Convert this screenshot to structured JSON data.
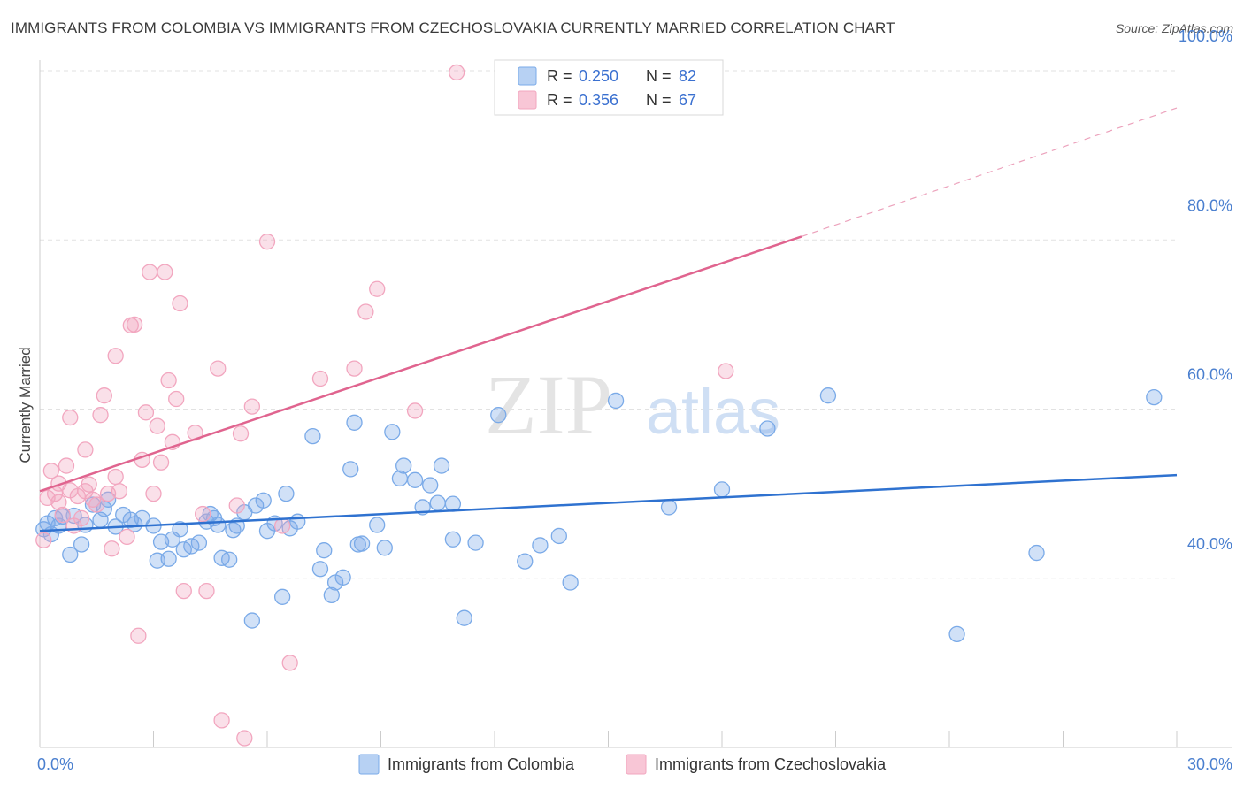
{
  "title": "IMMIGRANTS FROM COLOMBIA VS IMMIGRANTS FROM CZECHOSLOVAKIA CURRENTLY MARRIED CORRELATION CHART",
  "source": "Source: ZipAtlas.com",
  "watermark": {
    "zip": "ZIP",
    "atlas": "atlas"
  },
  "chart_data": {
    "type": "scatter",
    "xlabel": "",
    "ylabel": "Currently Married",
    "xlim": [
      0,
      30
    ],
    "ylim": [
      20,
      100
    ],
    "x_tick_labels": [
      "0.0%",
      "30.0%"
    ],
    "x_tick_values": [
      0,
      30
    ],
    "y_ticks": [
      {
        "value": 40,
        "label": "40.0%"
      },
      {
        "value": 60,
        "label": "60.0%"
      },
      {
        "value": 80,
        "label": "80.0%"
      },
      {
        "value": 100,
        "label": "100.0%"
      }
    ],
    "grid": true,
    "legend_position": "top-center",
    "stats": [
      {
        "r_label": "R =",
        "r_value": "0.250",
        "n_label": "N =",
        "n_value": "82"
      },
      {
        "r_label": "R =",
        "r_value": "0.356",
        "n_label": "N =",
        "n_value": "67"
      }
    ],
    "series": [
      {
        "name": "Immigrants from Colombia",
        "color": "#7aaae8",
        "line_color": "#2f72d0",
        "trend": {
          "x0": 0,
          "y0": 45.6,
          "x1": 30,
          "y1": 52.2,
          "dash_from": null
        },
        "points": [
          [
            0.1,
            45.8
          ],
          [
            0.2,
            46.5
          ],
          [
            0.3,
            45.2
          ],
          [
            0.4,
            47.1
          ],
          [
            0.5,
            46.2
          ],
          [
            0.6,
            47.3
          ],
          [
            0.8,
            42.8
          ],
          [
            0.9,
            47.4
          ],
          [
            1.1,
            44.0
          ],
          [
            1.2,
            46.3
          ],
          [
            1.4,
            48.7
          ],
          [
            1.6,
            46.9
          ],
          [
            1.7,
            48.2
          ],
          [
            1.8,
            49.3
          ],
          [
            2.0,
            46.1
          ],
          [
            2.2,
            47.5
          ],
          [
            2.4,
            46.9
          ],
          [
            2.5,
            46.4
          ],
          [
            2.7,
            47.1
          ],
          [
            3.0,
            46.2
          ],
          [
            3.1,
            42.1
          ],
          [
            3.2,
            44.3
          ],
          [
            3.4,
            42.3
          ],
          [
            3.5,
            44.6
          ],
          [
            3.7,
            45.8
          ],
          [
            3.8,
            43.4
          ],
          [
            4.0,
            43.8
          ],
          [
            4.2,
            44.2
          ],
          [
            4.4,
            46.7
          ],
          [
            4.5,
            47.6
          ],
          [
            4.6,
            47.1
          ],
          [
            4.7,
            46.3
          ],
          [
            4.8,
            42.4
          ],
          [
            5.0,
            42.2
          ],
          [
            5.1,
            45.7
          ],
          [
            5.2,
            46.2
          ],
          [
            5.4,
            47.8
          ],
          [
            5.6,
            35.0
          ],
          [
            5.7,
            48.6
          ],
          [
            5.9,
            49.2
          ],
          [
            6.0,
            45.6
          ],
          [
            6.2,
            46.5
          ],
          [
            6.4,
            37.8
          ],
          [
            6.5,
            50.0
          ],
          [
            6.6,
            45.9
          ],
          [
            6.8,
            46.7
          ],
          [
            7.2,
            56.8
          ],
          [
            7.4,
            41.1
          ],
          [
            7.5,
            43.3
          ],
          [
            7.7,
            38.0
          ],
          [
            7.8,
            39.5
          ],
          [
            8.0,
            40.1
          ],
          [
            8.2,
            52.9
          ],
          [
            8.3,
            58.4
          ],
          [
            8.4,
            44.0
          ],
          [
            8.5,
            44.1
          ],
          [
            8.9,
            46.3
          ],
          [
            9.1,
            43.6
          ],
          [
            9.3,
            57.3
          ],
          [
            9.5,
            51.8
          ],
          [
            9.6,
            53.3
          ],
          [
            9.9,
            51.6
          ],
          [
            10.1,
            48.4
          ],
          [
            10.3,
            51.0
          ],
          [
            10.5,
            48.9
          ],
          [
            10.6,
            53.3
          ],
          [
            10.9,
            48.8
          ],
          [
            10.9,
            44.6
          ],
          [
            11.2,
            35.3
          ],
          [
            11.5,
            44.2
          ],
          [
            12.1,
            59.3
          ],
          [
            12.8,
            42.0
          ],
          [
            13.2,
            43.9
          ],
          [
            13.7,
            45.0
          ],
          [
            14.0,
            39.5
          ],
          [
            15.2,
            61.0
          ],
          [
            16.6,
            48.4
          ],
          [
            18.0,
            50.5
          ],
          [
            19.2,
            57.7
          ],
          [
            20.8,
            61.6
          ],
          [
            24.2,
            33.4
          ],
          [
            26.3,
            43.0
          ],
          [
            29.4,
            61.4
          ]
        ]
      },
      {
        "name": "Immigrants from Czechoslovakia",
        "color": "#f2a6bf",
        "line_color": "#e0648f",
        "trend": {
          "x0": 0,
          "y0": 50.3,
          "x1": 20.1,
          "y1": 80.4,
          "dash_from": 20.1,
          "dash_to_x": 30,
          "dash_to_y": 95.6
        },
        "points": [
          [
            0.1,
            44.5
          ],
          [
            0.2,
            49.5
          ],
          [
            0.3,
            52.7
          ],
          [
            0.4,
            50.0
          ],
          [
            0.5,
            51.2
          ],
          [
            0.5,
            49.0
          ],
          [
            0.6,
            47.5
          ],
          [
            0.7,
            53.3
          ],
          [
            0.8,
            50.4
          ],
          [
            0.8,
            59.0
          ],
          [
            0.9,
            46.2
          ],
          [
            1.0,
            49.7
          ],
          [
            1.1,
            47.1
          ],
          [
            1.2,
            50.3
          ],
          [
            1.2,
            55.2
          ],
          [
            1.3,
            51.1
          ],
          [
            1.4,
            49.3
          ],
          [
            1.5,
            48.7
          ],
          [
            1.6,
            59.3
          ],
          [
            1.7,
            61.6
          ],
          [
            1.8,
            50.0
          ],
          [
            1.9,
            43.5
          ],
          [
            2.0,
            52.0
          ],
          [
            2.0,
            66.3
          ],
          [
            2.1,
            50.3
          ],
          [
            2.3,
            44.9
          ],
          [
            2.4,
            69.9
          ],
          [
            2.5,
            70.0
          ],
          [
            2.6,
            33.2
          ],
          [
            2.7,
            54.0
          ],
          [
            2.8,
            59.6
          ],
          [
            2.9,
            76.2
          ],
          [
            3.0,
            50.0
          ],
          [
            3.1,
            58.0
          ],
          [
            3.2,
            53.7
          ],
          [
            3.3,
            76.2
          ],
          [
            3.4,
            63.4
          ],
          [
            3.5,
            56.1
          ],
          [
            3.6,
            61.2
          ],
          [
            3.7,
            72.5
          ],
          [
            3.8,
            38.5
          ],
          [
            4.1,
            57.2
          ],
          [
            4.3,
            47.6
          ],
          [
            4.4,
            38.5
          ],
          [
            4.7,
            64.8
          ],
          [
            4.8,
            23.2
          ],
          [
            5.2,
            48.6
          ],
          [
            5.3,
            57.1
          ],
          [
            5.4,
            21.1
          ],
          [
            5.6,
            60.3
          ],
          [
            6.0,
            79.8
          ],
          [
            6.4,
            46.2
          ],
          [
            6.6,
            30.0
          ],
          [
            7.4,
            63.6
          ],
          [
            8.3,
            64.8
          ],
          [
            8.6,
            71.5
          ],
          [
            8.9,
            74.2
          ],
          [
            9.9,
            59.8
          ],
          [
            11.0,
            99.8
          ],
          [
            18.1,
            64.5
          ]
        ]
      }
    ]
  }
}
